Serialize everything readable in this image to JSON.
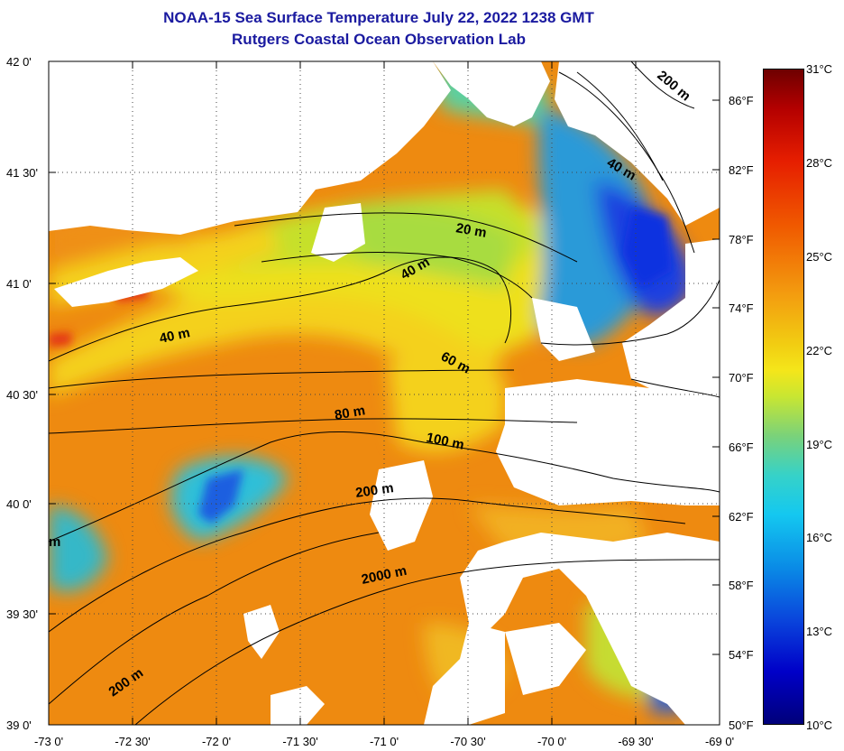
{
  "title": {
    "line1": "NOAA-15 Sea Surface Temperature July 22, 2022 1238 GMT",
    "line2": "Rutgers Coastal Ocean Observation Lab"
  },
  "map": {
    "latitude_labels": [
      "42 0'",
      "41 30'",
      "41 0'",
      "40 30'",
      "40 0'",
      "39 30'",
      "39 0'"
    ],
    "longitude_labels": [
      "-73 0'",
      "-72 30'",
      "-72 0'",
      "-71 30'",
      "-71 0'",
      "-70 30'",
      "-70 0'",
      "-69 30'",
      "-69 0'"
    ],
    "contour_labels": [
      "20 m",
      "40 m",
      "40 m",
      "40 m",
      "60 m",
      "80 m",
      "100 m",
      "200 m",
      "200 m",
      "200 m",
      "2000 m",
      "m"
    ],
    "colors": {
      "land": "#ffffff",
      "warm": "#f0900e",
      "mid": "#f2e21a",
      "cool": "#3cc8e0",
      "cold": "#1a3ce6",
      "hot": "#e43418"
    }
  },
  "colorbar": {
    "celsius_labels": [
      "31°C",
      "28°C",
      "25°C",
      "22°C",
      "19°C",
      "16°C",
      "13°C",
      "10°C"
    ],
    "fahrenheit_labels": [
      "86°F",
      "82°F",
      "78°F",
      "74°F",
      "70°F",
      "66°F",
      "62°F",
      "58°F",
      "54°F",
      "50°F"
    ],
    "range_celsius": [
      10,
      31
    ]
  }
}
